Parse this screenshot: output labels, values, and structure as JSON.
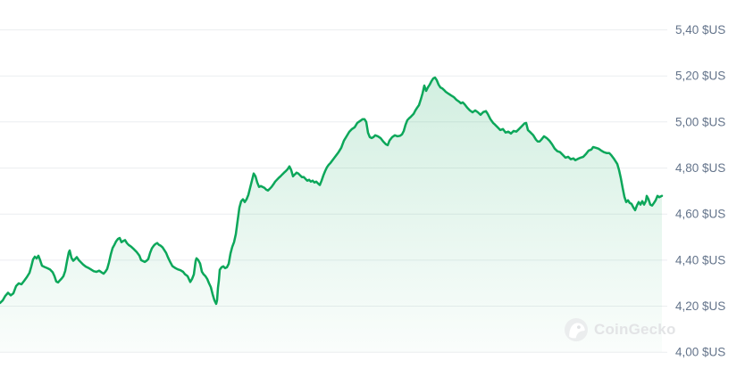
{
  "chart_data": {
    "type": "area",
    "title": "",
    "xlabel": "",
    "ylabel": "",
    "legend": "none",
    "grid": "horizontal-only",
    "y_axis": {
      "min": 4.0,
      "max": 5.4,
      "step": 0.2,
      "unit": "$US",
      "decimal_separator": ",",
      "side": "right",
      "tick_labels": [
        "5,40 $US",
        "5,20 $US",
        "5,00 $US",
        "4,80 $US",
        "4,60 $US",
        "4,40 $US",
        "4,20 $US",
        "4,00 $US"
      ]
    },
    "colors": {
      "line": "#0ca75a",
      "fill": "#0ca75a",
      "fill_top_opacity": 0.2,
      "fill_bottom_opacity": 0.02,
      "grid": "#eceef0",
      "label": "#64748b"
    },
    "points": [
      [
        0,
        4.214
      ],
      [
        3,
        4.225
      ],
      [
        6,
        4.245
      ],
      [
        9,
        4.258
      ],
      [
        12,
        4.247
      ],
      [
        15,
        4.256
      ],
      [
        18,
        4.287
      ],
      [
        21,
        4.299
      ],
      [
        24,
        4.295
      ],
      [
        27,
        4.31
      ],
      [
        30,
        4.326
      ],
      [
        33,
        4.345
      ],
      [
        35,
        4.372
      ],
      [
        37,
        4.403
      ],
      [
        39,
        4.415
      ],
      [
        41,
        4.407
      ],
      [
        43,
        4.419
      ],
      [
        45,
        4.399
      ],
      [
        47,
        4.376
      ],
      [
        50,
        4.37
      ],
      [
        53,
        4.365
      ],
      [
        56,
        4.359
      ],
      [
        59,
        4.347
      ],
      [
        61,
        4.33
      ],
      [
        63,
        4.307
      ],
      [
        65,
        4.303
      ],
      [
        67,
        4.312
      ],
      [
        69,
        4.32
      ],
      [
        71,
        4.33
      ],
      [
        73,
        4.353
      ],
      [
        75,
        4.395
      ],
      [
        77,
        4.434
      ],
      [
        78,
        4.442
      ],
      [
        80,
        4.41
      ],
      [
        82,
        4.397
      ],
      [
        84,
        4.405
      ],
      [
        86,
        4.413
      ],
      [
        88,
        4.401
      ],
      [
        90,
        4.393
      ],
      [
        93,
        4.381
      ],
      [
        96,
        4.372
      ],
      [
        99,
        4.366
      ],
      [
        102,
        4.359
      ],
      [
        105,
        4.352
      ],
      [
        108,
        4.349
      ],
      [
        111,
        4.354
      ],
      [
        114,
        4.346
      ],
      [
        116,
        4.341
      ],
      [
        118,
        4.35
      ],
      [
        120,
        4.362
      ],
      [
        122,
        4.39
      ],
      [
        124,
        4.424
      ],
      [
        126,
        4.452
      ],
      [
        128,
        4.466
      ],
      [
        130,
        4.482
      ],
      [
        132,
        4.492
      ],
      [
        134,
        4.496
      ],
      [
        136,
        4.478
      ],
      [
        138,
        4.483
      ],
      [
        140,
        4.487
      ],
      [
        142,
        4.474
      ],
      [
        144,
        4.466
      ],
      [
        147,
        4.458
      ],
      [
        150,
        4.447
      ],
      [
        153,
        4.435
      ],
      [
        156,
        4.42
      ],
      [
        158,
        4.4
      ],
      [
        160,
        4.396
      ],
      [
        162,
        4.392
      ],
      [
        164,
        4.397
      ],
      [
        166,
        4.405
      ],
      [
        168,
        4.431
      ],
      [
        170,
        4.451
      ],
      [
        172,
        4.462
      ],
      [
        174,
        4.47
      ],
      [
        176,
        4.474
      ],
      [
        178,
        4.466
      ],
      [
        180,
        4.462
      ],
      [
        182,
        4.455
      ],
      [
        184,
        4.443
      ],
      [
        186,
        4.431
      ],
      [
        188,
        4.412
      ],
      [
        190,
        4.396
      ],
      [
        193,
        4.374
      ],
      [
        196,
        4.366
      ],
      [
        199,
        4.36
      ],
      [
        202,
        4.356
      ],
      [
        205,
        4.349
      ],
      [
        207,
        4.339
      ],
      [
        210,
        4.33
      ],
      [
        213,
        4.305
      ],
      [
        215,
        4.318
      ],
      [
        217,
        4.338
      ],
      [
        219,
        4.396
      ],
      [
        220,
        4.408
      ],
      [
        222,
        4.4
      ],
      [
        224,
        4.385
      ],
      [
        226,
        4.35
      ],
      [
        228,
        4.338
      ],
      [
        230,
        4.33
      ],
      [
        232,
        4.318
      ],
      [
        234,
        4.299
      ],
      [
        236,
        4.283
      ],
      [
        238,
        4.252
      ],
      [
        240,
        4.226
      ],
      [
        242,
        4.21
      ],
      [
        243,
        4.226
      ],
      [
        244,
        4.28
      ],
      [
        245,
        4.311
      ],
      [
        246,
        4.358
      ],
      [
        248,
        4.369
      ],
      [
        250,
        4.373
      ],
      [
        252,
        4.365
      ],
      [
        254,
        4.369
      ],
      [
        256,
        4.384
      ],
      [
        258,
        4.428
      ],
      [
        260,
        4.458
      ],
      [
        262,
        4.478
      ],
      [
        264,
        4.513
      ],
      [
        266,
        4.571
      ],
      [
        268,
        4.628
      ],
      [
        270,
        4.656
      ],
      [
        272,
        4.664
      ],
      [
        274,
        4.652
      ],
      [
        276,
        4.664
      ],
      [
        278,
        4.683
      ],
      [
        280,
        4.714
      ],
      [
        282,
        4.745
      ],
      [
        284,
        4.776
      ],
      [
        286,
        4.764
      ],
      [
        288,
        4.737
      ],
      [
        290,
        4.718
      ],
      [
        292,
        4.722
      ],
      [
        294,
        4.718
      ],
      [
        296,
        4.714
      ],
      [
        298,
        4.706
      ],
      [
        300,
        4.702
      ],
      [
        302,
        4.71
      ],
      [
        304,
        4.718
      ],
      [
        306,
        4.729
      ],
      [
        308,
        4.741
      ],
      [
        310,
        4.749
      ],
      [
        312,
        4.757
      ],
      [
        314,
        4.764
      ],
      [
        316,
        4.772
      ],
      [
        318,
        4.78
      ],
      [
        320,
        4.787
      ],
      [
        322,
        4.795
      ],
      [
        324,
        4.807
      ],
      [
        326,
        4.791
      ],
      [
        328,
        4.764
      ],
      [
        330,
        4.772
      ],
      [
        332,
        4.78
      ],
      [
        334,
        4.776
      ],
      [
        336,
        4.768
      ],
      [
        338,
        4.76
      ],
      [
        340,
        4.761
      ],
      [
        342,
        4.753
      ],
      [
        344,
        4.745
      ],
      [
        346,
        4.749
      ],
      [
        348,
        4.741
      ],
      [
        350,
        4.745
      ],
      [
        352,
        4.737
      ],
      [
        354,
        4.741
      ],
      [
        356,
        4.733
      ],
      [
        358,
        4.726
      ],
      [
        360,
        4.745
      ],
      [
        362,
        4.768
      ],
      [
        364,
        4.787
      ],
      [
        366,
        4.803
      ],
      [
        368,
        4.814
      ],
      [
        370,
        4.822
      ],
      [
        373,
        4.838
      ],
      [
        376,
        4.853
      ],
      [
        379,
        4.869
      ],
      [
        382,
        4.888
      ],
      [
        385,
        4.919
      ],
      [
        388,
        4.938
      ],
      [
        391,
        4.957
      ],
      [
        394,
        4.969
      ],
      [
        397,
        4.977
      ],
      [
        400,
        4.996
      ],
      [
        403,
        5.004
      ],
      [
        406,
        5.012
      ],
      [
        408,
        5.012
      ],
      [
        410,
        5.0
      ],
      [
        412,
        4.953
      ],
      [
        414,
        4.934
      ],
      [
        416,
        4.93
      ],
      [
        418,
        4.934
      ],
      [
        420,
        4.942
      ],
      [
        423,
        4.938
      ],
      [
        426,
        4.93
      ],
      [
        429,
        4.915
      ],
      [
        432,
        4.903
      ],
      [
        434,
        4.899
      ],
      [
        436,
        4.919
      ],
      [
        439,
        4.934
      ],
      [
        442,
        4.942
      ],
      [
        445,
        4.938
      ],
      [
        448,
        4.94
      ],
      [
        450,
        4.946
      ],
      [
        452,
        4.961
      ],
      [
        454,
        4.988
      ],
      [
        456,
        5.008
      ],
      [
        458,
        5.016
      ],
      [
        460,
        5.023
      ],
      [
        463,
        5.035
      ],
      [
        465,
        5.05
      ],
      [
        467,
        5.062
      ],
      [
        469,
        5.073
      ],
      [
        471,
        5.097
      ],
      [
        473,
        5.124
      ],
      [
        475,
        5.158
      ],
      [
        477,
        5.135
      ],
      [
        479,
        5.15
      ],
      [
        481,
        5.162
      ],
      [
        483,
        5.177
      ],
      [
        485,
        5.189
      ],
      [
        487,
        5.193
      ],
      [
        489,
        5.181
      ],
      [
        491,
        5.162
      ],
      [
        493,
        5.15
      ],
      [
        495,
        5.146
      ],
      [
        497,
        5.139
      ],
      [
        499,
        5.131
      ],
      [
        502,
        5.123
      ],
      [
        505,
        5.115
      ],
      [
        508,
        5.108
      ],
      [
        511,
        5.096
      ],
      [
        514,
        5.088
      ],
      [
        516,
        5.081
      ],
      [
        518,
        5.085
      ],
      [
        520,
        5.077
      ],
      [
        523,
        5.062
      ],
      [
        526,
        5.05
      ],
      [
        529,
        5.042
      ],
      [
        532,
        5.05
      ],
      [
        535,
        5.042
      ],
      [
        538,
        5.031
      ],
      [
        541,
        5.043
      ],
      [
        544,
        5.047
      ],
      [
        546,
        5.035
      ],
      [
        549,
        5.012
      ],
      [
        552,
        4.996
      ],
      [
        554,
        4.989
      ],
      [
        557,
        4.977
      ],
      [
        560,
        4.965
      ],
      [
        563,
        4.969
      ],
      [
        566,
        4.954
      ],
      [
        569,
        4.958
      ],
      [
        572,
        4.95
      ],
      [
        575,
        4.961
      ],
      [
        578,
        4.958
      ],
      [
        581,
        4.969
      ],
      [
        584,
        4.981
      ],
      [
        587,
        4.993
      ],
      [
        589,
        4.996
      ],
      [
        591,
        4.965
      ],
      [
        594,
        4.954
      ],
      [
        597,
        4.942
      ],
      [
        600,
        4.923
      ],
      [
        602,
        4.915
      ],
      [
        604,
        4.915
      ],
      [
        606,
        4.923
      ],
      [
        609,
        4.938
      ],
      [
        612,
        4.93
      ],
      [
        615,
        4.919
      ],
      [
        618,
        4.903
      ],
      [
        621,
        4.884
      ],
      [
        624,
        4.873
      ],
      [
        627,
        4.869
      ],
      [
        630,
        4.857
      ],
      [
        633,
        4.845
      ],
      [
        636,
        4.849
      ],
      [
        639,
        4.838
      ],
      [
        642,
        4.842
      ],
      [
        644,
        4.834
      ],
      [
        647,
        4.84
      ],
      [
        650,
        4.845
      ],
      [
        653,
        4.849
      ],
      [
        656,
        4.861
      ],
      [
        659,
        4.876
      ],
      [
        662,
        4.88
      ],
      [
        664,
        4.891
      ],
      [
        667,
        4.888
      ],
      [
        670,
        4.884
      ],
      [
        673,
        4.876
      ],
      [
        676,
        4.869
      ],
      [
        679,
        4.865
      ],
      [
        682,
        4.865
      ],
      [
        684,
        4.857
      ],
      [
        687,
        4.842
      ],
      [
        689,
        4.83
      ],
      [
        691,
        4.818
      ],
      [
        693,
        4.791
      ],
      [
        695,
        4.756
      ],
      [
        697,
        4.714
      ],
      [
        699,
        4.675
      ],
      [
        701,
        4.652
      ],
      [
        703,
        4.66
      ],
      [
        705,
        4.648
      ],
      [
        707,
        4.644
      ],
      [
        709,
        4.629
      ],
      [
        711,
        4.617
      ],
      [
        713,
        4.637
      ],
      [
        715,
        4.652
      ],
      [
        717,
        4.641
      ],
      [
        719,
        4.656
      ],
      [
        721,
        4.641
      ],
      [
        723,
        4.656
      ],
      [
        724,
        4.679
      ],
      [
        726,
        4.664
      ],
      [
        728,
        4.641
      ],
      [
        730,
        4.637
      ],
      [
        732,
        4.648
      ],
      [
        734,
        4.66
      ],
      [
        736,
        4.679
      ],
      [
        738,
        4.673
      ],
      [
        740,
        4.677
      ],
      [
        741,
        4.679
      ]
    ]
  },
  "watermark": {
    "label": "CoinGecko"
  }
}
